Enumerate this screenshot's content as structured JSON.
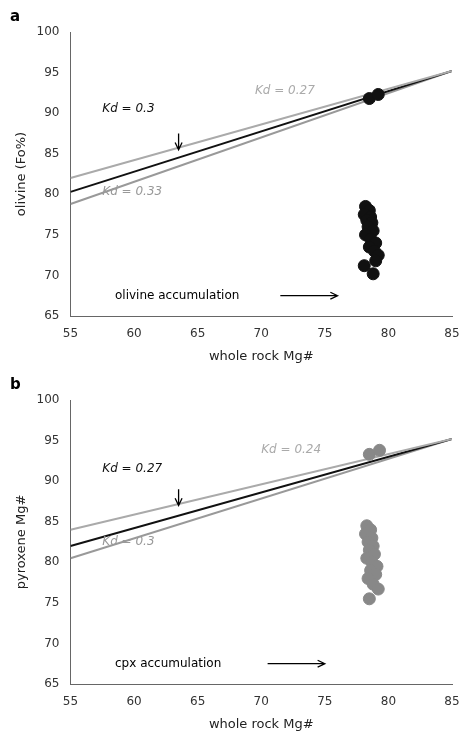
{
  "chart_data": [
    {
      "type": "scatter",
      "title": "a",
      "xlabel": "whole rock Mg#",
      "ylabel": "olivine (Fo%)",
      "xlim": [
        55,
        85
      ],
      "ylim": [
        65,
        100
      ],
      "xticks": [
        55,
        60,
        65,
        70,
        75,
        80,
        85
      ],
      "yticks": [
        65,
        70,
        75,
        80,
        85,
        90,
        95,
        100
      ],
      "grid": false,
      "series": [
        {
          "type": "line",
          "line_style": "solid",
          "color": "#aaaaaa",
          "x": [
            55,
            85
          ],
          "values": [
            82.0,
            95.2
          ]
        },
        {
          "type": "line",
          "line_style": "solid",
          "color": "#111111",
          "x": [
            55,
            85
          ],
          "values": [
            80.3,
            95.2
          ]
        },
        {
          "type": "line",
          "line_style": "solid",
          "color": "#999999",
          "x": [
            55,
            85
          ],
          "values": [
            78.8,
            95.2
          ]
        },
        {
          "type": "scatter",
          "marker": "circle",
          "color": "#111111",
          "x": [
            78.2,
            78.5,
            78.1,
            78.6,
            78.3,
            78.7,
            78.4,
            78.8,
            78.2,
            78.6,
            79.0,
            78.5,
            78.9,
            79.2,
            79.0,
            78.1,
            78.8
          ],
          "values": [
            78.5,
            78.0,
            77.5,
            77.2,
            76.8,
            76.5,
            76.0,
            75.5,
            75.0,
            74.5,
            74.0,
            73.5,
            73.0,
            72.5,
            71.8,
            71.2,
            70.2
          ]
        },
        {
          "type": "scatter",
          "marker": "circle",
          "color": "#111111",
          "x": [
            78.5,
            79.2
          ],
          "values": [
            91.8,
            92.3
          ]
        }
      ],
      "annotations": [
        {
          "text": "Kd = 0.27",
          "x": 69.5,
          "y": 92.8,
          "color": "#aaaaaa"
        },
        {
          "text": "Kd = 0.3",
          "x": 57.5,
          "y": 90.5,
          "color": "#111111"
        },
        {
          "text": "Kd = 0.33",
          "x": 57.5,
          "y": 80.3,
          "color": "#999999"
        },
        {
          "arrow_from": [
            63.5,
            87.5
          ],
          "arrow_to": [
            63.5,
            85.5
          ]
        },
        {
          "text": "olivine accumulation",
          "x": 58.5,
          "y": 67.5
        },
        {
          "arrow_from": [
            71.5,
            67.5
          ],
          "arrow_to": [
            76.0,
            67.5
          ]
        }
      ]
    },
    {
      "type": "scatter",
      "title": "b",
      "xlabel": "whole rock Mg#",
      "ylabel": "pyroxene Mg#",
      "xlim": [
        55,
        85
      ],
      "ylim": [
        65,
        100
      ],
      "xticks": [
        55,
        60,
        65,
        70,
        75,
        80,
        85
      ],
      "yticks": [
        65,
        70,
        75,
        80,
        85,
        90,
        95,
        100
      ],
      "grid": false,
      "series": [
        {
          "type": "line",
          "line_style": "solid",
          "color": "#aaaaaa",
          "x": [
            55,
            85
          ],
          "values": [
            84.0,
            95.2
          ]
        },
        {
          "type": "line",
          "line_style": "solid",
          "color": "#111111",
          "x": [
            55,
            85
          ],
          "values": [
            82.0,
            95.2
          ]
        },
        {
          "type": "line",
          "line_style": "solid",
          "color": "#999999",
          "x": [
            55,
            85
          ],
          "values": [
            80.5,
            95.2
          ]
        },
        {
          "type": "scatter",
          "marker": "circle",
          "color": "#888888",
          "x": [
            78.3,
            78.6,
            78.2,
            78.7,
            78.4,
            78.8,
            78.5,
            78.9,
            78.3,
            78.7,
            79.1,
            78.6,
            79.0,
            78.4,
            78.8,
            79.2,
            78.5
          ],
          "values": [
            84.5,
            84.0,
            83.5,
            83.0,
            82.5,
            82.0,
            81.5,
            81.0,
            80.5,
            80.0,
            79.5,
            79.0,
            78.5,
            78.0,
            77.3,
            76.7,
            75.5
          ]
        },
        {
          "type": "scatter",
          "marker": "circle",
          "color": "#888888",
          "x": [
            78.5,
            79.3
          ],
          "values": [
            93.3,
            93.8
          ]
        }
      ],
      "annotations": [
        {
          "text": "Kd = 0.24",
          "x": 70.0,
          "y": 93.8,
          "color": "#aaaaaa"
        },
        {
          "text": "Kd = 0.27",
          "x": 57.5,
          "y": 91.5,
          "color": "#111111"
        },
        {
          "text": "Kd = 0.3",
          "x": 57.5,
          "y": 82.5,
          "color": "#999999"
        },
        {
          "arrow_from": [
            63.5,
            89.0
          ],
          "arrow_to": [
            63.5,
            87.0
          ]
        },
        {
          "text": "cpx accumulation",
          "x": 58.5,
          "y": 67.5
        },
        {
          "arrow_from": [
            70.5,
            67.5
          ],
          "arrow_to": [
            75.0,
            67.5
          ]
        }
      ]
    }
  ]
}
